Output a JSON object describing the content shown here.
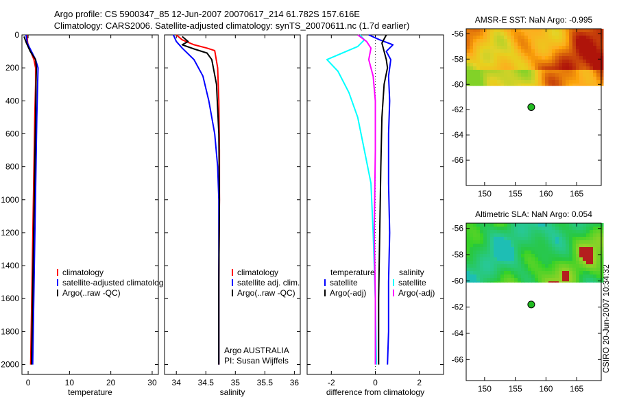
{
  "header": {
    "line1": "Argo profile: CS 5900347_85 12-Jun-2007 20070617_214 61.782S 157.616E",
    "line2": "Climatology: CARS2006. Satellite-adjusted climatology: synTS_20070611.nc (1.7d earlier)"
  },
  "side_label": "CSIRO 20-Jun-2007 10:34:32",
  "profile_panels": [
    {
      "id": "temperature",
      "xlabel": "temperature",
      "xlim": [
        -1.5,
        31.5
      ],
      "ylim": [
        0,
        2060
      ],
      "xticks": [
        "0",
        "10",
        "20",
        "30"
      ],
      "xtick_values": [
        0,
        10,
        20,
        30
      ],
      "yticks": [
        "0",
        "200",
        "400",
        "600",
        "800",
        "1000",
        "1200",
        "1400",
        "1600",
        "1800",
        "2000"
      ],
      "ytick_values": [
        0,
        200,
        400,
        600,
        800,
        1000,
        1200,
        1400,
        1600,
        1800,
        2000
      ],
      "legend": [
        {
          "label": "climatology",
          "color": "#ff0000"
        },
        {
          "label": "satellite-adjusted climatolog",
          "color": "#0000ff"
        },
        {
          "label": "Argo(..raw -QC)",
          "color": "#000000"
        }
      ],
      "series": [
        {
          "name": "climatology",
          "color": "#ff0000",
          "points": [
            [
              -0.3,
              0
            ],
            [
              -0.1,
              50
            ],
            [
              0.6,
              100
            ],
            [
              1.4,
              150
            ],
            [
              1.8,
              200
            ],
            [
              1.8,
              300
            ],
            [
              1.6,
              500
            ],
            [
              1.4,
              800
            ],
            [
              1.2,
              1100
            ],
            [
              1.0,
              1400
            ],
            [
              0.8,
              1700
            ],
            [
              0.6,
              2000
            ]
          ]
        },
        {
          "name": "satellite-adjusted climatology",
          "color": "#0000ff",
          "points": [
            [
              -0.5,
              0
            ],
            [
              -0.2,
              50
            ],
            [
              0.8,
              100
            ],
            [
              1.8,
              150
            ],
            [
              2.4,
              200
            ],
            [
              2.3,
              300
            ],
            [
              2.1,
              500
            ],
            [
              1.9,
              800
            ],
            [
              1.7,
              1100
            ],
            [
              1.5,
              1400
            ],
            [
              1.3,
              1700
            ],
            [
              1.1,
              2000
            ]
          ]
        },
        {
          "name": "Argo",
          "color": "#000000",
          "points": [
            [
              -1.0,
              10
            ],
            [
              -0.4,
              50
            ],
            [
              0.5,
              100
            ],
            [
              1.8,
              150
            ],
            [
              2.0,
              200
            ],
            [
              1.9,
              300
            ],
            [
              1.8,
              500
            ],
            [
              1.6,
              800
            ],
            [
              1.4,
              1100
            ],
            [
              1.2,
              1400
            ],
            [
              1.0,
              1700
            ],
            [
              0.8,
              2000
            ]
          ]
        }
      ]
    },
    {
      "id": "salinity",
      "xlabel": "salinity",
      "xlim": [
        33.8,
        36.1
      ],
      "ylim": [
        0,
        2060
      ],
      "xticks": [
        "34",
        "34.5",
        "35",
        "35.5",
        "36"
      ],
      "xtick_values": [
        34,
        34.5,
        35,
        35.5,
        36
      ],
      "legend": [
        {
          "label": "climatology",
          "color": "#ff0000"
        },
        {
          "label": "satellite adj. clim.",
          "color": "#0000ff"
        },
        {
          "label": "Argo(..raw -QC)",
          "color": "#000000"
        }
      ],
      "annotations": [
        "Argo AUSTRALIA",
        "PI: Susan Wijffels"
      ],
      "series": [
        {
          "name": "climatology",
          "color": "#ff0000",
          "points": [
            [
              34.0,
              0
            ],
            [
              34.1,
              30
            ],
            [
              34.3,
              60
            ],
            [
              34.52,
              80
            ],
            [
              34.65,
              95
            ],
            [
              34.7,
              200
            ],
            [
              34.72,
              400
            ],
            [
              34.73,
              700
            ],
            [
              34.73,
              1000
            ],
            [
              34.72,
              1500
            ],
            [
              34.72,
              2000
            ]
          ]
        },
        {
          "name": "satellite adj. clim.",
          "color": "#0000ff",
          "points": [
            [
              33.95,
              0
            ],
            [
              34.0,
              40
            ],
            [
              34.1,
              80
            ],
            [
              34.3,
              150
            ],
            [
              34.45,
              250
            ],
            [
              34.55,
              400
            ],
            [
              34.65,
              600
            ],
            [
              34.7,
              800
            ],
            [
              34.72,
              1000
            ],
            [
              34.72,
              1500
            ],
            [
              34.72,
              2000
            ]
          ]
        },
        {
          "name": "Argo",
          "color": "#000000",
          "points": [
            [
              34.1,
              10
            ],
            [
              34.2,
              40
            ],
            [
              34.1,
              60
            ],
            [
              34.3,
              85
            ],
            [
              34.52,
              110
            ],
            [
              34.6,
              150
            ],
            [
              34.68,
              300
            ],
            [
              34.72,
              600
            ],
            [
              34.73,
              1000
            ],
            [
              34.72,
              1500
            ],
            [
              34.72,
              2000
            ]
          ]
        }
      ]
    },
    {
      "id": "difference",
      "xlabel": "difference from climatology",
      "xlim": [
        -3.1,
        3.1
      ],
      "ylim": [
        0,
        2060
      ],
      "xticks": [
        "-2",
        "0",
        "2"
      ],
      "xtick_values": [
        -2,
        0,
        2
      ],
      "legend_left_title": "temperature",
      "legend_right_title": "salinity",
      "legend_left": [
        {
          "label": "satellite",
          "color": "#0000ff"
        },
        {
          "label": "Argo(-adj)",
          "color": "#000000"
        }
      ],
      "legend_right": [
        {
          "label": "satellite",
          "color": "#00ffff"
        },
        {
          "label": "Argo(-adj)",
          "color": "#ff00ff"
        }
      ],
      "series": [
        {
          "name": "temperature satellite",
          "color": "#0000ff",
          "points": [
            [
              -0.3,
              0
            ],
            [
              0.2,
              30
            ],
            [
              0.8,
              60
            ],
            [
              0.5,
              100
            ],
            [
              0.7,
              150
            ],
            [
              0.6,
              250
            ],
            [
              0.65,
              400
            ],
            [
              0.6,
              600
            ],
            [
              0.6,
              900
            ],
            [
              0.65,
              1200
            ],
            [
              0.6,
              1500
            ],
            [
              0.6,
              1800
            ],
            [
              0.55,
              2000
            ]
          ]
        },
        {
          "name": "temperature Argo(-adj)",
          "color": "#000000",
          "points": [
            [
              0.5,
              0
            ],
            [
              0.3,
              50
            ],
            [
              0.4,
              100
            ],
            [
              0.5,
              150
            ],
            [
              0.55,
              200
            ],
            [
              0.4,
              300
            ],
            [
              0.3,
              500
            ],
            [
              0.25,
              800
            ],
            [
              0.2,
              1200
            ],
            [
              0.15,
              1600
            ],
            [
              0.15,
              2000
            ]
          ]
        },
        {
          "name": "salinity satellite",
          "color": "#00ffff",
          "points": [
            [
              -0.7,
              0
            ],
            [
              -0.5,
              30
            ],
            [
              -0.8,
              70
            ],
            [
              -2.2,
              150
            ],
            [
              -1.7,
              220
            ],
            [
              -1.2,
              350
            ],
            [
              -0.8,
              500
            ],
            [
              -0.5,
              700
            ],
            [
              -0.2,
              900
            ],
            [
              -0.1,
              1200
            ],
            [
              0.0,
              1600
            ],
            [
              0.05,
              2000
            ]
          ]
        },
        {
          "name": "salinity Argo(-adj)",
          "color": "#ff00ff",
          "points": [
            [
              -0.8,
              0
            ],
            [
              -0.4,
              40
            ],
            [
              -0.2,
              80
            ],
            [
              -0.3,
              150
            ],
            [
              -0.1,
              250
            ],
            [
              0.0,
              400
            ],
            [
              0.0,
              700
            ],
            [
              -0.05,
              1200
            ],
            [
              0.0,
              1600
            ],
            [
              0.0,
              2000
            ]
          ]
        }
      ]
    }
  ],
  "map_panels": [
    {
      "id": "sst",
      "title": "AMSR-E SST: NaN Argo: -0.995",
      "xlim": [
        147,
        169
      ],
      "ylim": [
        -68,
        -55.6
      ],
      "xticks": [
        "150",
        "155",
        "160",
        "165"
      ],
      "xtick_values": [
        150,
        155,
        160,
        165
      ],
      "yticks": [
        "-56",
        "-58",
        "-60",
        "-62",
        "-64",
        "-66"
      ],
      "ytick_values": [
        -56,
        -58,
        -60,
        -62,
        -64,
        -66
      ],
      "field_lat_range": [
        -60.1,
        -55.6
      ],
      "palette": "hot",
      "marker": {
        "lon": 157.6,
        "lat": -61.8,
        "color": "#22bb22"
      }
    },
    {
      "id": "sla",
      "title": "Altimetric SLA: NaN Argo: 0.054",
      "xlim": [
        147,
        169
      ],
      "ylim": [
        -67.6,
        -55.6
      ],
      "xticks": [
        "150",
        "155",
        "160",
        "165"
      ],
      "xtick_values": [
        150,
        155,
        160,
        165
      ],
      "yticks": [
        "-56",
        "-58",
        "-60",
        "-62",
        "-64",
        "-66"
      ],
      "ytick_values": [
        -56,
        -58,
        -60,
        -62,
        -64,
        -66
      ],
      "field_lat_range": [
        -60.1,
        -55.6
      ],
      "palette": "green",
      "marker": {
        "lon": 157.6,
        "lat": -61.8,
        "color": "#22bb22"
      }
    }
  ],
  "chart_data": [
    {
      "type": "line",
      "xlabel": "temperature",
      "ylabel": "",
      "xlim": [
        -1.5,
        31.5
      ],
      "ylim": [
        0,
        2060
      ],
      "series_names": [
        "climatology",
        "satellite-adjusted climatology",
        "Argo"
      ]
    },
    {
      "type": "line",
      "xlabel": "salinity",
      "ylabel": "",
      "xlim": [
        33.8,
        36.1
      ],
      "ylim": [
        0,
        2060
      ],
      "series_names": [
        "climatology",
        "satellite adj. clim.",
        "Argo"
      ]
    },
    {
      "type": "line",
      "xlabel": "difference from climatology",
      "ylabel": "",
      "xlim": [
        -3.1,
        3.1
      ],
      "ylim": [
        0,
        2060
      ],
      "series_names": [
        "temperature satellite",
        "temperature Argo(-adj)",
        "salinity satellite",
        "salinity Argo(-adj)"
      ]
    },
    {
      "type": "heatmap",
      "title": "AMSR-E SST: NaN Argo: -0.995",
      "xlim": [
        147,
        169
      ],
      "ylim": [
        -68,
        -55.6
      ]
    },
    {
      "type": "heatmap",
      "title": "Altimetric SLA: NaN Argo: 0.054",
      "xlim": [
        147,
        169
      ],
      "ylim": [
        -67.6,
        -55.6
      ]
    }
  ]
}
